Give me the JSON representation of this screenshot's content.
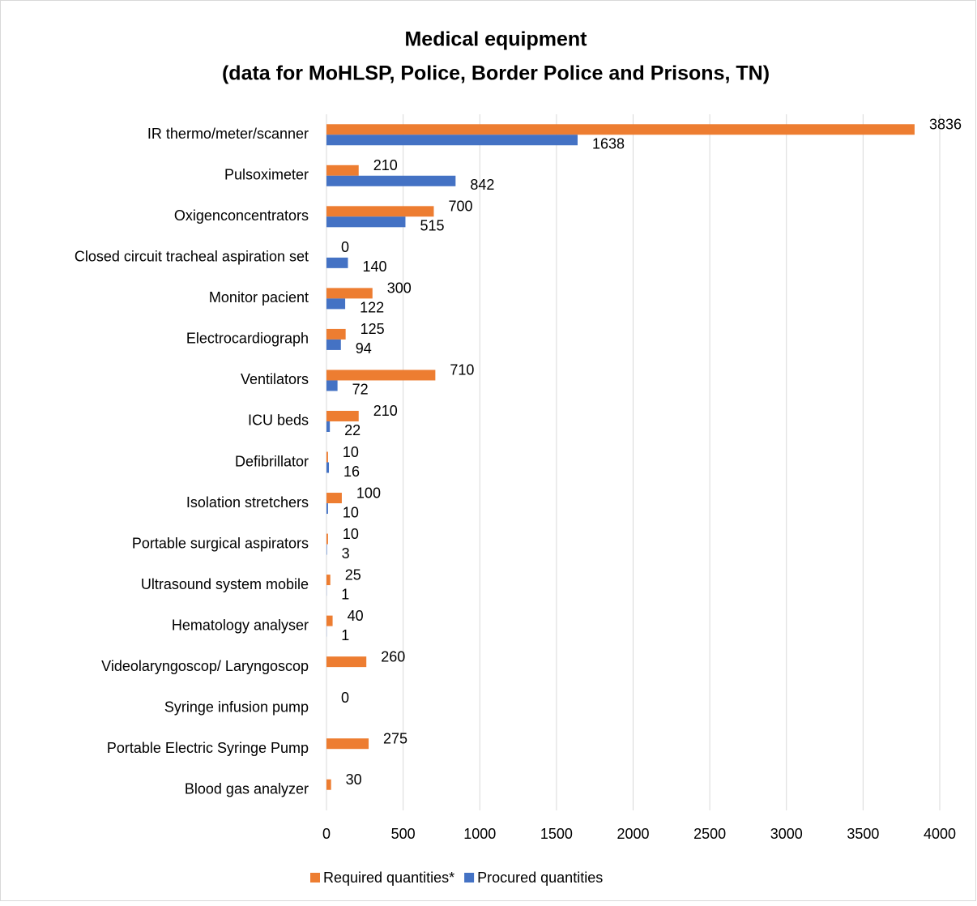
{
  "chart_data": {
    "type": "hbar",
    "title": "Medical equipment",
    "subtitle": "(data for MoHLSP, Police, Border Police and Prisons, TN)",
    "categories": [
      "IR thermo/meter/scanner",
      "Pulsoximeter",
      "Oxigenconcentrators",
      "Closed circuit tracheal aspiration set",
      "Monitor pacient",
      "Electrocardiograph",
      "Ventilators",
      "ICU beds",
      "Defibrillator",
      "Isolation stretchers",
      "Portable surgical aspirators",
      "Ultrasound system mobile",
      "Hematology analyser",
      "Videolaryngoscop/ Laryngoscop",
      "Syringe infusion pump",
      "Portable Electric Syringe Pump",
      "Blood gas analyzer"
    ],
    "series": [
      {
        "name": "Required quantities*",
        "color": "#ed7d31",
        "values": [
          3836,
          210,
          700,
          0,
          300,
          125,
          710,
          210,
          10,
          100,
          10,
          25,
          40,
          260,
          0,
          275,
          30
        ]
      },
      {
        "name": "Procured quantities",
        "color": "#4472c4",
        "values": [
          1638,
          842,
          515,
          140,
          122,
          94,
          72,
          22,
          16,
          10,
          3,
          1,
          1,
          null,
          null,
          null,
          null
        ]
      }
    ],
    "xlim": [
      0,
      4000
    ],
    "xticks": [
      0,
      500,
      1000,
      1500,
      2000,
      2500,
      3000,
      3500,
      4000
    ],
    "grid": true,
    "legend": "bottom"
  }
}
